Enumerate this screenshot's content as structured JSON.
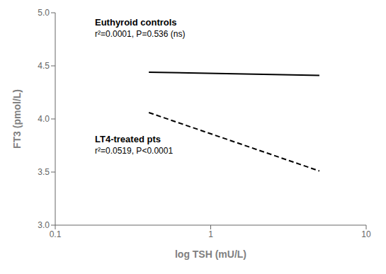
{
  "chart_data": {
    "type": "line",
    "title": "",
    "xlabel": "log TSH (mU/L)",
    "ylabel": "FT3 (pmol/L)",
    "log": "x",
    "grid": false,
    "x": [
      0.4,
      5.0
    ],
    "series": [
      {
        "color": "#000000",
        "line_style": "solid",
        "values": [
          4.44,
          4.41
        ]
      },
      {
        "color": "#000000",
        "line_style": "dashed",
        "values": [
          4.06,
          3.51
        ]
      }
    ],
    "xlim": [
      0.1,
      10
    ],
    "ylim": [
      3.0,
      5.0
    ],
    "xticks": [
      0.1,
      1,
      10
    ],
    "yticks": [
      {
        "value": 3.0,
        "label": "3.0"
      },
      3.5,
      {
        "value": 4.0,
        "label": "4.0"
      },
      4.5,
      {
        "value": 5.0,
        "label": "5.0"
      }
    ],
    "annotations": [
      "Euthyroid controls",
      "r²=0.0001, P=0.536 (ns)",
      "LT4-treated pts",
      "r²=0.0519, P<0.0001"
    ]
  }
}
